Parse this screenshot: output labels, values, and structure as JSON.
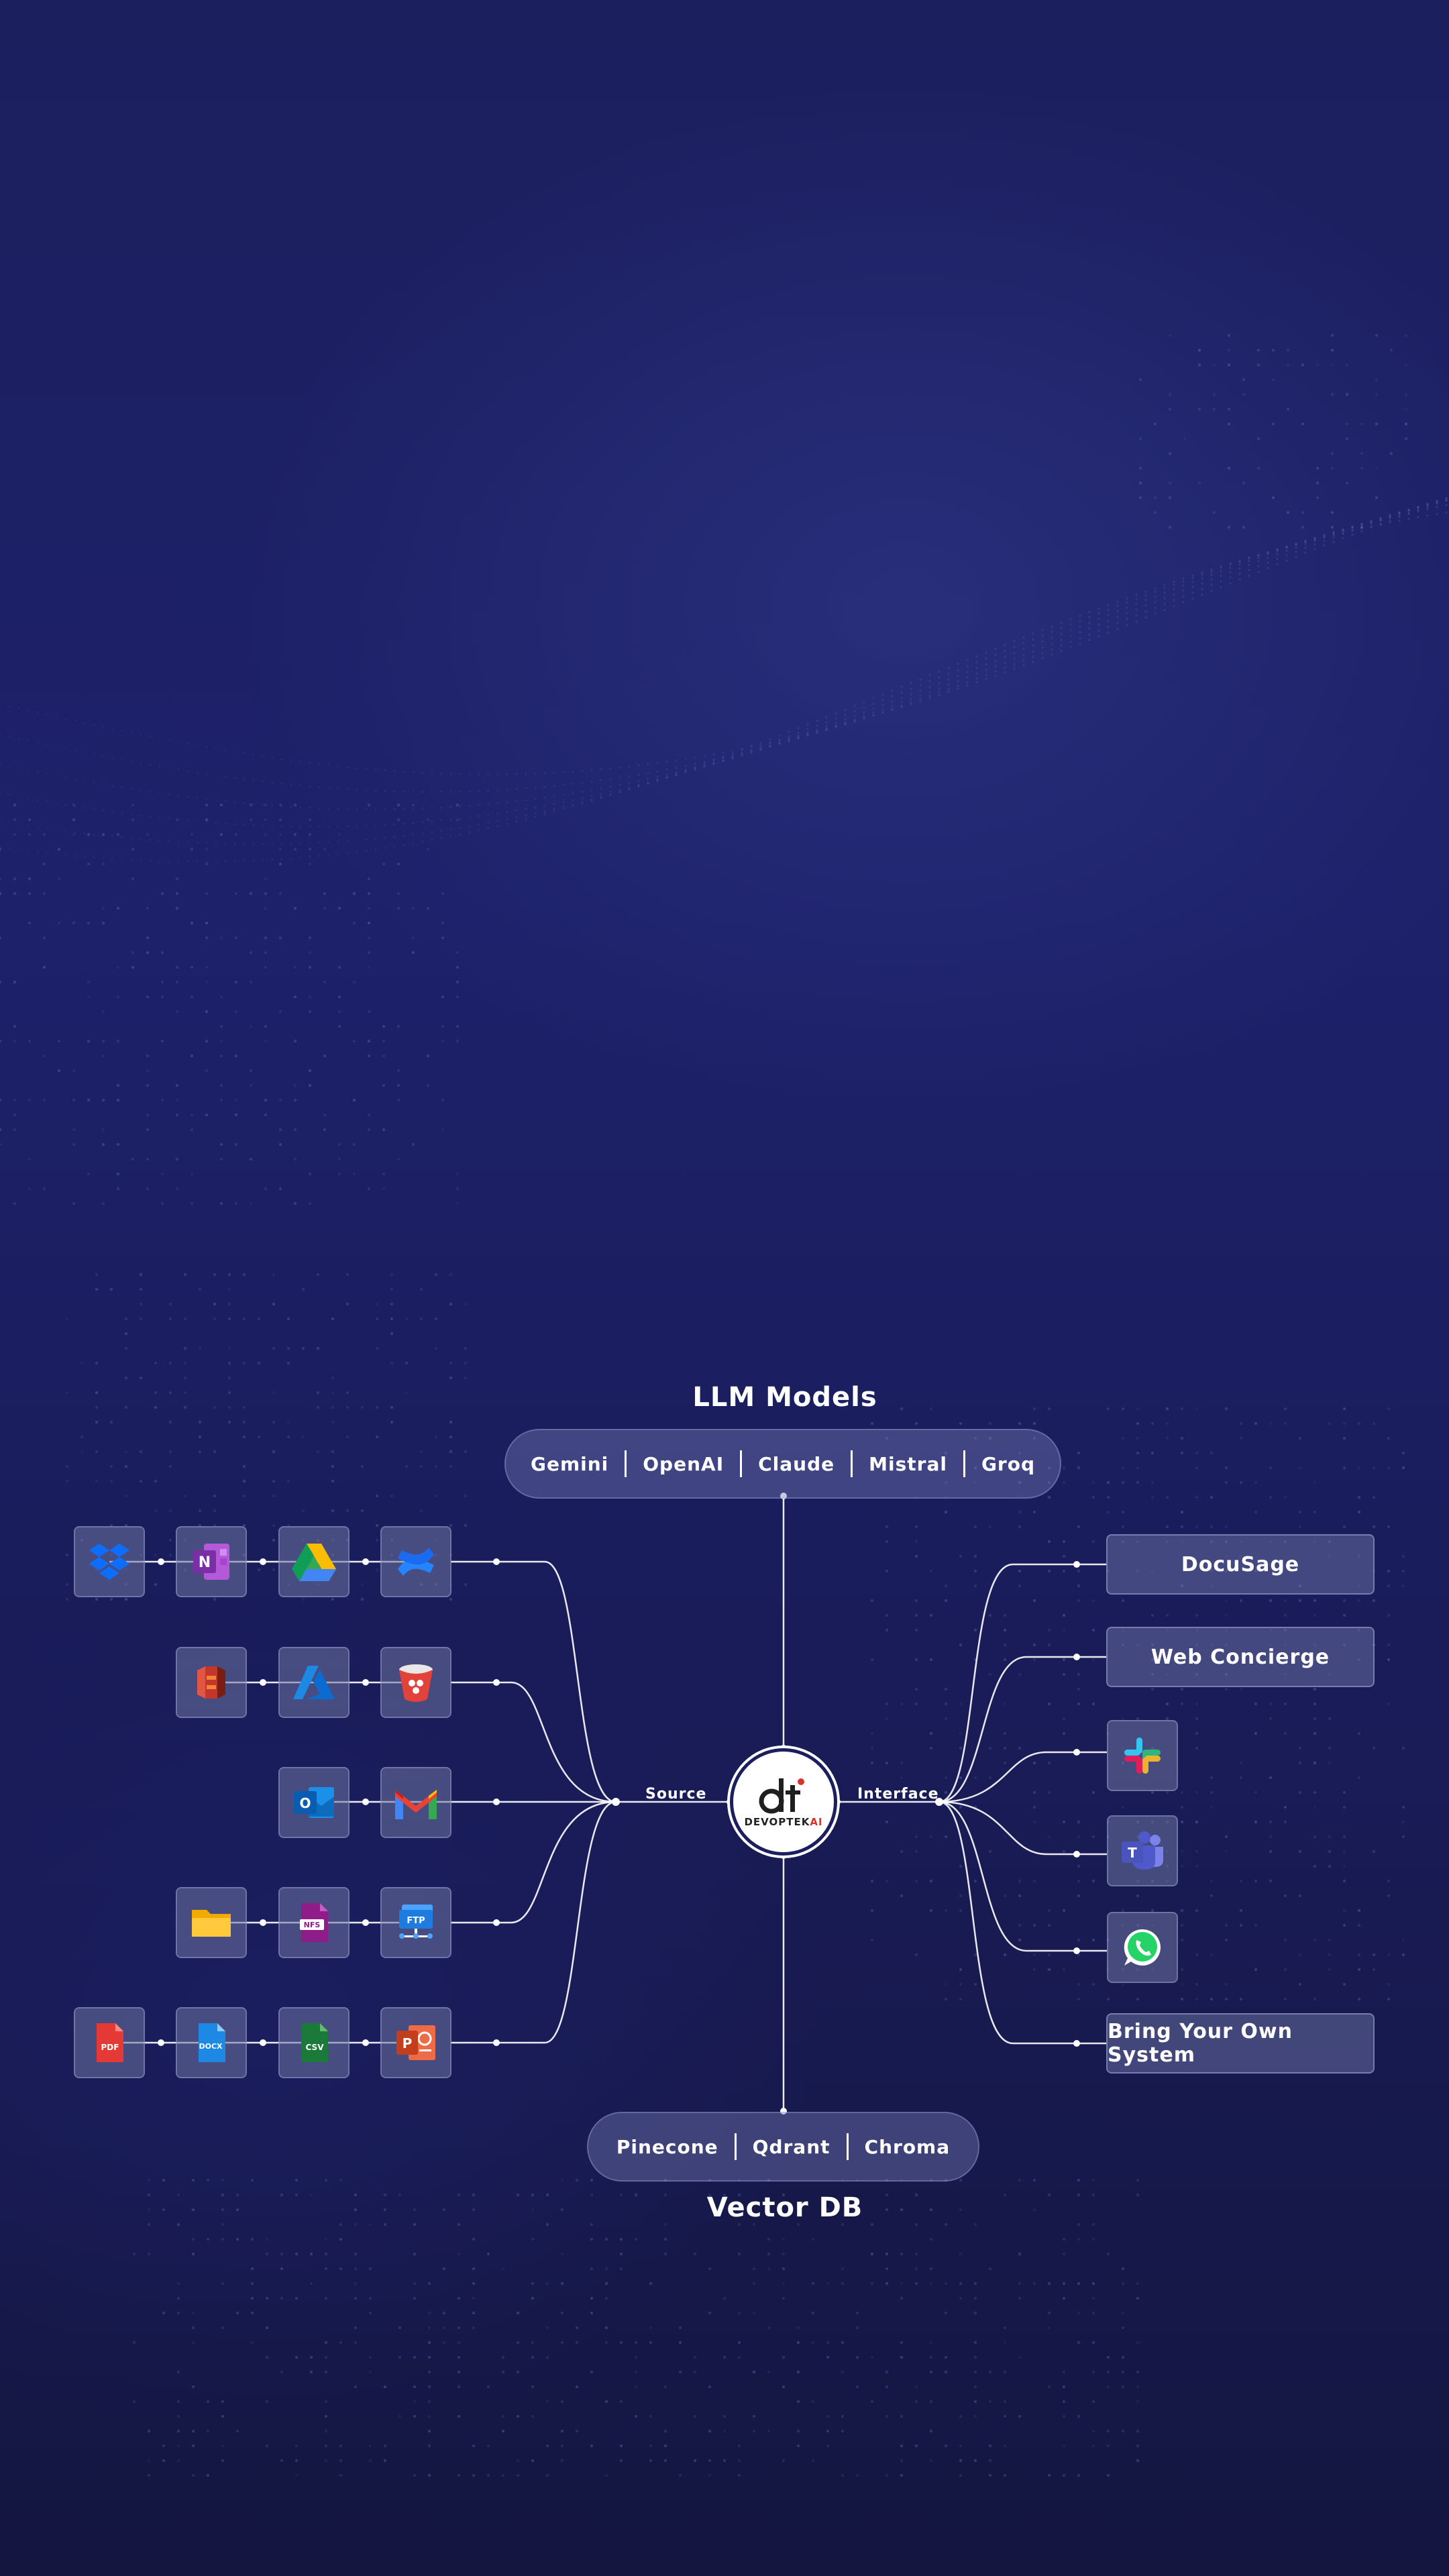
{
  "headings": {
    "llm": "LLM Models",
    "vector_db": "Vector DB"
  },
  "llm_models": [
    "Gemini",
    "OpenAI",
    "Claude",
    "Mistral",
    "Groq"
  ],
  "vector_dbs": [
    "Pinecone",
    "Qdrant",
    "Chroma"
  ],
  "hub": {
    "source_label": "Source",
    "interface_label": "Interface",
    "logo_mark": "dt",
    "logo_text_main": "DEVOPTEK",
    "logo_text_accent": "AI"
  },
  "sources": [
    [
      "dropbox-icon",
      "onenote-icon",
      "google-drive-icon",
      "confluence-icon"
    ],
    [
      "aws-s3-icon",
      "azure-icon",
      "gcs-bucket-icon"
    ],
    [
      "outlook-icon",
      "gmail-icon"
    ],
    [
      "folder-icon",
      "nfs-file-icon",
      "ftp-icon"
    ],
    [
      "pdf-file-icon",
      "docx-file-icon",
      "csv-file-icon",
      "powerpoint-icon"
    ]
  ],
  "file_badges": {
    "pdf": "PDF",
    "docx": "DOCX",
    "csv": "CSV",
    "nfs": "NFS",
    "ftp": "FTP",
    "onenote": "N",
    "powerpoint": "P",
    "outlook": "O",
    "teams": "T"
  },
  "interfaces": {
    "docusage": "DocuSage",
    "web_concierge": "Web Concierge",
    "byos": "Bring Your Own System",
    "icons": [
      "slack-icon",
      "teams-icon",
      "whatsapp-icon"
    ]
  },
  "colors": {
    "background": "#1c1f5e",
    "line": "#ffffff",
    "box_fill": "#6e73a0",
    "accent_red": "#d8342c"
  }
}
